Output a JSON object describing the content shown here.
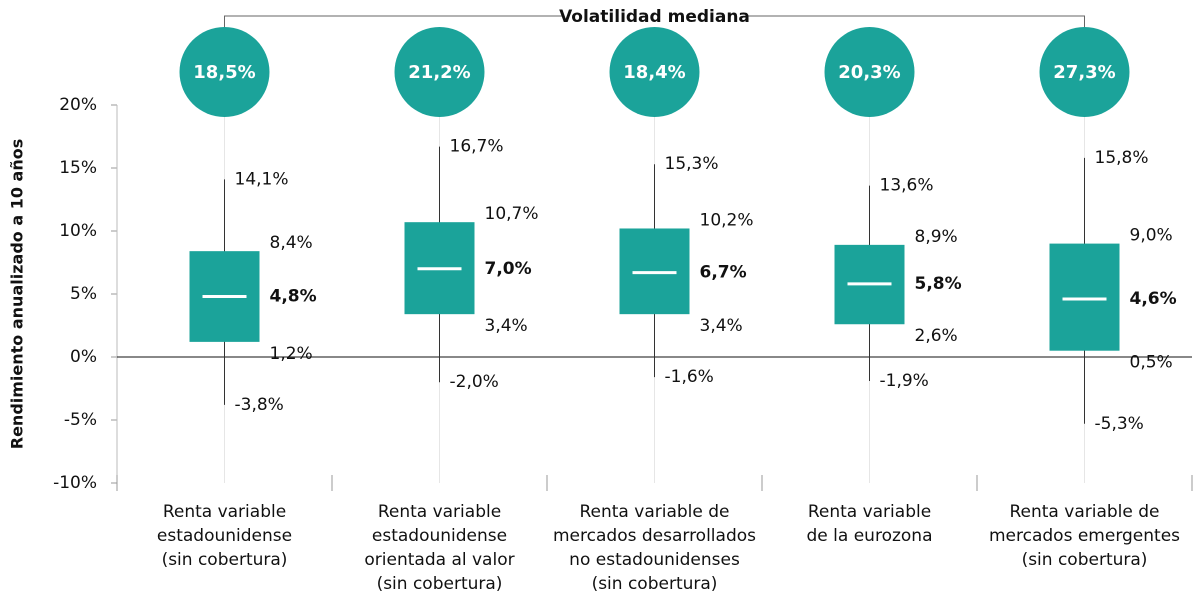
{
  "chart_data": {
    "type": "box",
    "title": "Volatilidad mediana",
    "y_label": "Rendimiento anualizado a 10 años",
    "color": "#1ba39a",
    "ylim": [
      -10,
      20
    ],
    "yticks": [
      {
        "value": -10,
        "label": "-10%"
      },
      {
        "value": -5,
        "label": "-5%"
      },
      {
        "value": 0,
        "label": "0%"
      },
      {
        "value": 5,
        "label": "5%"
      },
      {
        "value": 10,
        "label": "10%"
      },
      {
        "value": 15,
        "label": "15%"
      },
      {
        "value": 20,
        "label": "20%"
      }
    ],
    "categories": [
      [
        "Renta variable",
        "estadounidense",
        "(sin cobertura)"
      ],
      [
        "Renta variable",
        "estadounidense",
        "orientada al valor",
        "(sin cobertura)"
      ],
      [
        "Renta variable de",
        "mercados desarrollados",
        "no estadounidenses",
        "(sin cobertura)"
      ],
      [
        "Renta variable",
        "de la eurozona"
      ],
      [
        "Renta variable de",
        "mercados emergentes",
        "(sin cobertura)"
      ]
    ],
    "volatility": {
      "values": [
        18.5,
        21.2,
        18.4,
        20.3,
        27.3
      ],
      "value_labels": [
        "18,5%",
        "21,2%",
        "18,4%",
        "20,3%",
        "27,3%"
      ]
    },
    "boxes": [
      {
        "low": -3.8,
        "q1": 1.2,
        "median": 4.8,
        "q3": 8.4,
        "high": 14.1,
        "value_labels": {
          "low": "-3,8%",
          "q1": "1,2%",
          "median": "4,8%",
          "q3": "8,4%",
          "high": "14,1%"
        }
      },
      {
        "low": -2.0,
        "q1": 3.4,
        "median": 7.0,
        "q3": 10.7,
        "high": 16.7,
        "value_labels": {
          "low": "-2,0%",
          "q1": "3,4%",
          "median": "7,0%",
          "q3": "10,7%",
          "high": "16,7%"
        }
      },
      {
        "low": -1.6,
        "q1": 3.4,
        "median": 6.7,
        "q3": 10.2,
        "high": 15.3,
        "value_labels": {
          "low": "-1,6%",
          "q1": "3,4%",
          "median": "6,7%",
          "q3": "10,2%",
          "high": "15,3%"
        }
      },
      {
        "low": -1.9,
        "q1": 2.6,
        "median": 5.8,
        "q3": 8.9,
        "high": 13.6,
        "value_labels": {
          "low": "-1,9%",
          "q1": "2,6%",
          "median": "5,8%",
          "q3": "8,9%",
          "high": "13,6%"
        }
      },
      {
        "low": -5.3,
        "q1": 0.5,
        "median": 4.6,
        "q3": 9.0,
        "high": 15.8,
        "value_labels": {
          "low": "-5,3%",
          "q1": "0,5%",
          "median": "4,6%",
          "q3": "9,0%",
          "high": "15,8%"
        }
      }
    ]
  }
}
